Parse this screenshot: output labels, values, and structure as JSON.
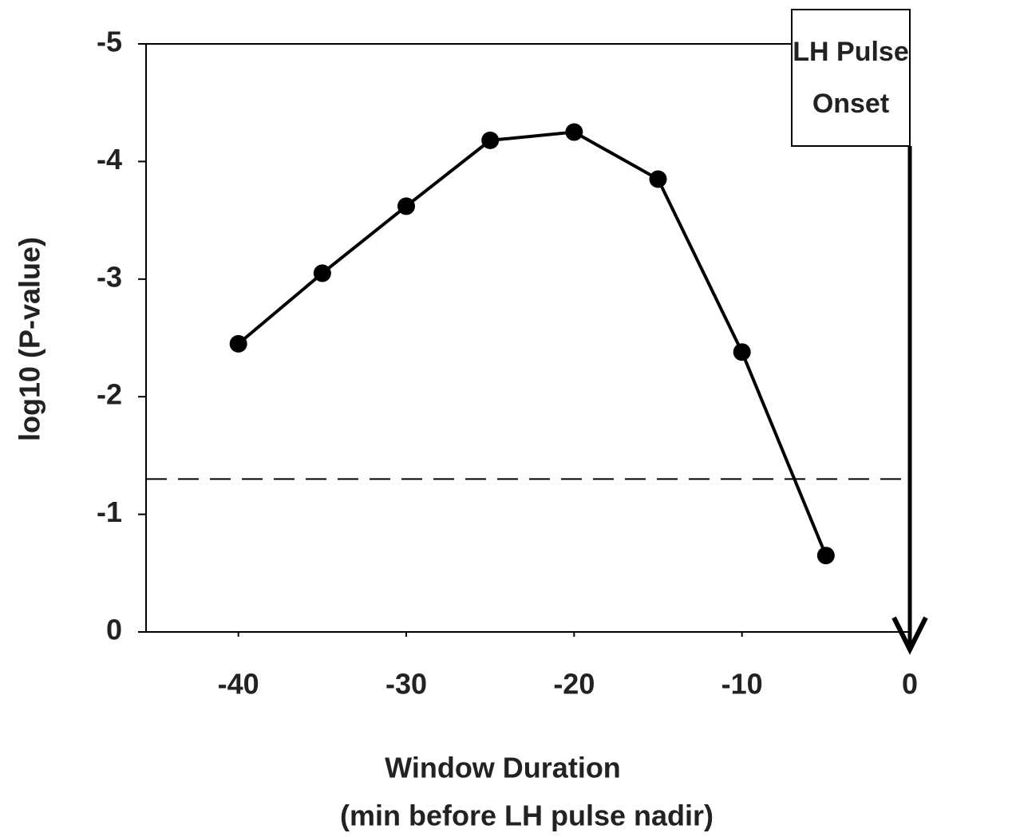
{
  "chart_data": {
    "type": "line",
    "x": [
      -40,
      -35,
      -30,
      -25,
      -20,
      -15,
      -10,
      -5
    ],
    "series": [
      {
        "color": "#000000",
        "values": [
          -2.45,
          -3.05,
          -3.62,
          -4.18,
          -4.25,
          -3.85,
          -2.38,
          -0.65
        ]
      }
    ],
    "xlim": [
      -45.5,
      0
    ],
    "ylim": [
      0,
      -5
    ],
    "xticks": [
      -40,
      -30,
      -20,
      -10,
      0
    ],
    "yticks": [
      0,
      -1,
      -2,
      -3,
      -4,
      -5
    ],
    "x_label": [
      "Window Duration",
      "(min before LH pulse nadir)"
    ],
    "y_label": "log10 (P-value)",
    "reference_line": {
      "y": -1.3,
      "style": "dashed"
    },
    "annotation": {
      "text": [
        "LH Pulse",
        "Onset"
      ],
      "x": 0
    }
  }
}
